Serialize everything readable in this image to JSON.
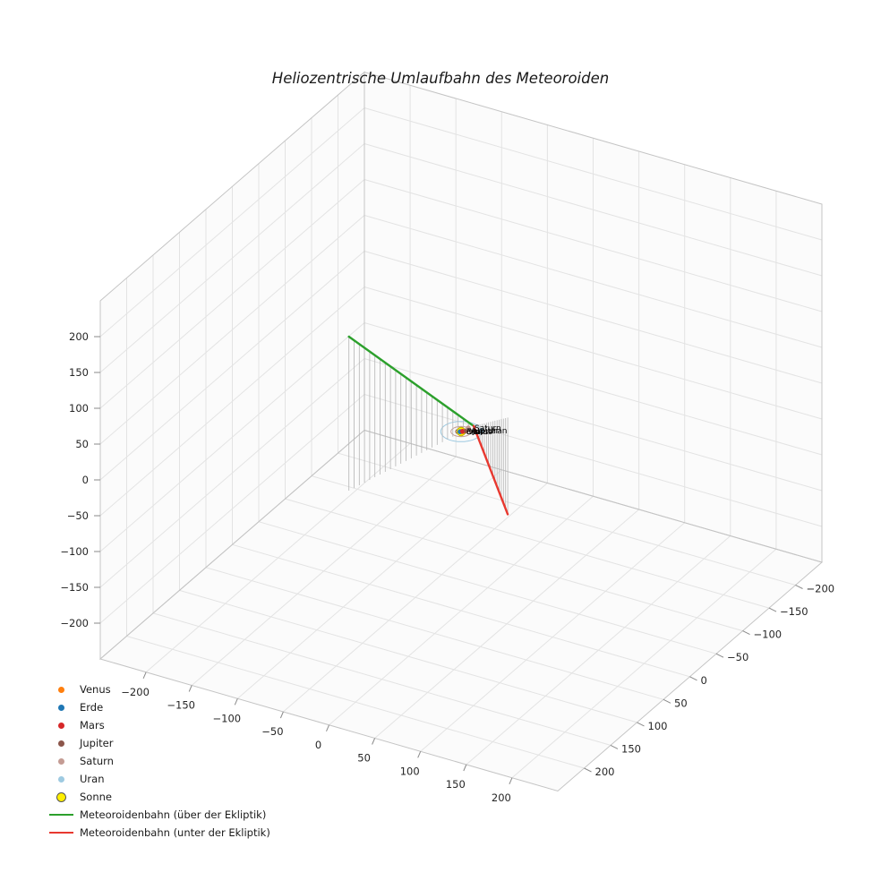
{
  "chart_data": {
    "type": "line",
    "projection": "3d",
    "title": "Heliozentrische Umlaufbahn des Meteoroiden",
    "view": {
      "elev": 30,
      "azim": -60,
      "grid": true
    },
    "axes": {
      "x": {
        "ticks": [
          -200,
          -150,
          -100,
          -50,
          0,
          50,
          100,
          150,
          200
        ],
        "range": [
          -250,
          250
        ]
      },
      "y": {
        "ticks": [
          -200,
          -150,
          -100,
          -50,
          0,
          50,
          100,
          150,
          200
        ],
        "range": [
          -250,
          250
        ]
      },
      "z": {
        "ticks": [
          -200,
          -150,
          -100,
          -50,
          0,
          50,
          100,
          150,
          200
        ],
        "range": [
          -250,
          250
        ]
      }
    },
    "planets": [
      {
        "name": "Venus",
        "color": "#ff7f0e",
        "orbit_radius": 0.72,
        "position": [
          0.55,
          -0.45,
          0
        ]
      },
      {
        "name": "Erde",
        "color": "#1f77b4",
        "orbit_radius": 1.0,
        "position": [
          -0.6,
          0.8,
          0
        ]
      },
      {
        "name": "Mars",
        "color": "#d62728",
        "orbit_radius": 1.52,
        "position": [
          1.1,
          -1.05,
          0
        ]
      },
      {
        "name": "Jupiter",
        "color": "#8c564b",
        "orbit_radius": 5.2,
        "position": [
          3.6,
          -3.75,
          0
        ]
      },
      {
        "name": "Saturn",
        "color": "#c49c94",
        "orbit_radius": 9.58,
        "position": [
          2.5,
          -9.25,
          0
        ]
      },
      {
        "name": "Uran",
        "color": "#9ecae1",
        "orbit_radius": 19.2,
        "position": [
          15.9,
          -11.2,
          0
        ]
      }
    ],
    "sun": {
      "name": "Sonne",
      "color": "#ffef00",
      "position": [
        0,
        0,
        0
      ]
    },
    "meteoroid": {
      "stem_color": "#b5b5b5",
      "above": {
        "label": "Meteoroidenbahn (über der Ekliptik)",
        "color": "#2ca02c",
        "start": [
          -36,
          150,
          215
        ],
        "end": [
          5,
          -15,
          0
        ],
        "stems": 24
      },
      "below": {
        "label": "Meteoroidenbahn (unter der Ekliptik)",
        "color": "#e8382f",
        "start": [
          5,
          -15,
          0
        ],
        "end": [
          25,
          -45,
          -135
        ],
        "stems": 16
      }
    },
    "legend": {
      "position": "lower-left",
      "entries": [
        {
          "label": "Venus",
          "marker": "dot",
          "color": "#ff7f0e"
        },
        {
          "label": "Erde",
          "marker": "dot",
          "color": "#1f77b4"
        },
        {
          "label": "Mars",
          "marker": "dot",
          "color": "#d62728"
        },
        {
          "label": "Jupiter",
          "marker": "dot",
          "color": "#8c564b"
        },
        {
          "label": "Saturn",
          "marker": "dot",
          "color": "#c49c94"
        },
        {
          "label": "Uran",
          "marker": "dot",
          "color": "#9ecae1"
        },
        {
          "label": "Sonne",
          "marker": "dot-large",
          "color": "#ffef00"
        },
        {
          "label": "Meteoroidenbahn (über der Ekliptik)",
          "marker": "line",
          "color": "#2ca02c"
        },
        {
          "label": "Meteoroidenbahn (unter der Ekliptik)",
          "marker": "line",
          "color": "#e8382f"
        }
      ]
    },
    "style": {
      "pane_color": "#fbfbfb",
      "grid_color": "#e3e3e3",
      "edge_color": "#c4c4c4",
      "tick_color": "#8a8a8a",
      "text_color": "#262626"
    }
  }
}
